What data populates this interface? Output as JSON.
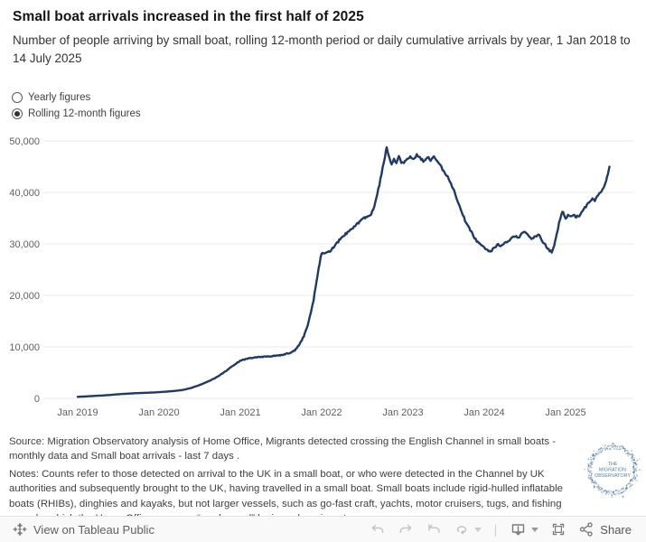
{
  "header": {
    "title": "Small boat arrivals increased in the first half of 2025",
    "subtitle": "Number of people arriving by small boat, rolling 12-month period or daily cumulative arrivals by year, 1 Jan 2018 to 14 July 2025"
  },
  "controls": {
    "radio_options": [
      {
        "name": "yearly-figures",
        "label": "Yearly figures",
        "selected": false
      },
      {
        "name": "rolling-12-month-figures",
        "label": "Rolling 12-month figures",
        "selected": true
      }
    ]
  },
  "chart_data": {
    "type": "line",
    "title": "",
    "xlabel": "",
    "ylabel": "",
    "grid": true,
    "legend": "none",
    "line_color": "#1f3a66",
    "grid_color": "#e9e9e9",
    "axis_text_color": "#5f5f5f",
    "ylim": [
      0,
      50000
    ],
    "xlim_years": [
      2018.58,
      2025.83
    ],
    "y_ticks": [
      {
        "label": "0",
        "value": 0
      },
      {
        "label": "10,000",
        "value": 10000
      },
      {
        "label": "20,000",
        "value": 20000
      },
      {
        "label": "30,000",
        "value": 30000
      },
      {
        "label": "40,000",
        "value": 40000
      },
      {
        "label": "50,000",
        "value": 50000
      }
    ],
    "x_ticks": [
      {
        "label": "Jan 2019",
        "year": 2019
      },
      {
        "label": "Jan 2020",
        "year": 2020
      },
      {
        "label": "Jan 2021",
        "year": 2021
      },
      {
        "label": "Jan 2022",
        "year": 2022
      },
      {
        "label": "Jan 2023",
        "year": 2023
      },
      {
        "label": "Jan 2024",
        "year": 2024
      },
      {
        "label": "Jan 2025",
        "year": 2025
      }
    ],
    "series": [
      {
        "name": "Rolling 12-month figures",
        "points": [
          [
            2019.0,
            300
          ],
          [
            2019.1,
            380
          ],
          [
            2019.2,
            470
          ],
          [
            2019.3,
            560
          ],
          [
            2019.4,
            660
          ],
          [
            2019.5,
            800
          ],
          [
            2019.6,
            900
          ],
          [
            2019.7,
            1000
          ],
          [
            2019.8,
            1060
          ],
          [
            2019.9,
            1120
          ],
          [
            2020.0,
            1200
          ],
          [
            2020.1,
            1320
          ],
          [
            2020.2,
            1450
          ],
          [
            2020.3,
            1650
          ],
          [
            2020.4,
            2050
          ],
          [
            2020.5,
            2600
          ],
          [
            2020.6,
            3250
          ],
          [
            2020.7,
            4050
          ],
          [
            2020.8,
            5050
          ],
          [
            2020.9,
            6250
          ],
          [
            2021.0,
            7300
          ],
          [
            2021.1,
            7800
          ],
          [
            2021.2,
            8000
          ],
          [
            2021.3,
            8100
          ],
          [
            2021.4,
            8250
          ],
          [
            2021.5,
            8400
          ],
          [
            2021.6,
            8800
          ],
          [
            2021.67,
            9300
          ],
          [
            2021.72,
            10300
          ],
          [
            2021.78,
            12000
          ],
          [
            2021.84,
            14800
          ],
          [
            2021.9,
            19000
          ],
          [
            2021.95,
            24000
          ],
          [
            2022.0,
            28300
          ],
          [
            2022.05,
            28100
          ],
          [
            2022.1,
            28500
          ],
          [
            2022.17,
            29800
          ],
          [
            2022.25,
            31300
          ],
          [
            2022.33,
            32400
          ],
          [
            2022.42,
            33600
          ],
          [
            2022.5,
            34800
          ],
          [
            2022.56,
            35400
          ],
          [
            2022.61,
            35700
          ],
          [
            2022.66,
            38000
          ],
          [
            2022.71,
            41500
          ],
          [
            2022.75,
            44800
          ],
          [
            2022.78,
            47000
          ],
          [
            2022.8,
            48800
          ],
          [
            2022.83,
            46800
          ],
          [
            2022.86,
            45400
          ],
          [
            2022.89,
            46400
          ],
          [
            2022.92,
            45500
          ],
          [
            2022.95,
            47200
          ],
          [
            2022.98,
            45700
          ],
          [
            2023.0,
            45700
          ],
          [
            2023.05,
            46400
          ],
          [
            2023.09,
            46900
          ],
          [
            2023.13,
            46300
          ],
          [
            2023.17,
            47400
          ],
          [
            2023.21,
            46700
          ],
          [
            2023.25,
            46100
          ],
          [
            2023.3,
            46900
          ],
          [
            2023.34,
            46300
          ],
          [
            2023.38,
            46900
          ],
          [
            2023.42,
            46100
          ],
          [
            2023.46,
            45200
          ],
          [
            2023.5,
            44100
          ],
          [
            2023.55,
            43100
          ],
          [
            2023.59,
            41800
          ],
          [
            2023.63,
            40200
          ],
          [
            2023.67,
            38500
          ],
          [
            2023.71,
            36800
          ],
          [
            2023.75,
            35100
          ],
          [
            2023.79,
            33700
          ],
          [
            2023.84,
            32300
          ],
          [
            2023.88,
            31200
          ],
          [
            2023.92,
            30300
          ],
          [
            2023.96,
            29700
          ],
          [
            2024.0,
            29300
          ],
          [
            2024.04,
            28800
          ],
          [
            2024.08,
            28500
          ],
          [
            2024.13,
            29400
          ],
          [
            2024.17,
            29900
          ],
          [
            2024.21,
            29600
          ],
          [
            2024.25,
            30200
          ],
          [
            2024.29,
            30500
          ],
          [
            2024.33,
            31000
          ],
          [
            2024.38,
            31500
          ],
          [
            2024.42,
            31100
          ],
          [
            2024.46,
            32000
          ],
          [
            2024.5,
            32400
          ],
          [
            2024.54,
            31500
          ],
          [
            2024.58,
            30900
          ],
          [
            2024.63,
            31400
          ],
          [
            2024.67,
            31900
          ],
          [
            2024.71,
            30600
          ],
          [
            2024.75,
            29800
          ],
          [
            2024.79,
            28900
          ],
          [
            2024.83,
            28400
          ],
          [
            2024.86,
            29600
          ],
          [
            2024.89,
            31800
          ],
          [
            2024.92,
            34000
          ],
          [
            2024.95,
            35800
          ],
          [
            2024.97,
            36300
          ],
          [
            2025.0,
            34900
          ],
          [
            2025.03,
            35700
          ],
          [
            2025.06,
            35300
          ],
          [
            2025.1,
            35600
          ],
          [
            2025.13,
            35300
          ],
          [
            2025.17,
            35500
          ],
          [
            2025.21,
            36400
          ],
          [
            2025.25,
            37300
          ],
          [
            2025.29,
            38100
          ],
          [
            2025.33,
            38800
          ],
          [
            2025.36,
            38400
          ],
          [
            2025.4,
            39600
          ],
          [
            2025.44,
            40200
          ],
          [
            2025.47,
            41000
          ],
          [
            2025.5,
            42400
          ],
          [
            2025.52,
            43600
          ],
          [
            2025.54,
            45000
          ]
        ]
      }
    ]
  },
  "footer": {
    "source": "Source: Migration Observatory analysis of Home Office, Migrants detected crossing the English Channel in small boats - monthly data and Small boat arrivals - last 7 days .",
    "notes": "Notes:  Counts refer to those detected on arrival to the UK in a small boat, or who were detected in the Channel by UK authorities and subsequently brought to the UK, having travelled in a small boat. Small boats include rigid-hulled inflatable boats (RHIBs), dinghies and kayaks, but not larger vessels, such as go-fast craft, yachts, motor cruisers, tugs, and fishing vessels, which the Home Office says are “rarely used” by irregular migrants."
  },
  "logo": {
    "text_lines": [
      "THE",
      "MIGRATION",
      "OBSERVATORY"
    ],
    "dot_color": "#35648c",
    "text_color": "#55809f"
  },
  "toolbar": {
    "view_label": "View on Tableau Public",
    "share_label": "Share",
    "icons": [
      "tableau-logo-icon",
      "undo-icon",
      "redo-icon",
      "replay-icon",
      "refresh-icon",
      "download-icon",
      "fullscreen-icon",
      "share-icon"
    ]
  }
}
